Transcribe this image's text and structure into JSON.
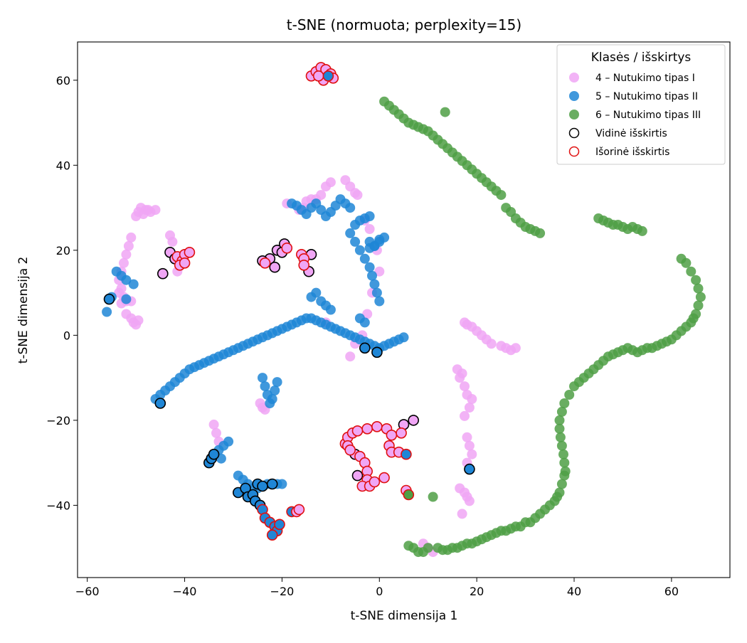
{
  "chart_data": {
    "type": "scatter",
    "title": "t-SNE (normuota; perplexity=15)",
    "xlabel": "t-SNE dimensija 1",
    "ylabel": "t-SNE dimensija 2",
    "xlim": [
      -62,
      72
    ],
    "ylim": [
      -57,
      69
    ],
    "x_ticks": [
      -60,
      -40,
      -20,
      0,
      20,
      40,
      60
    ],
    "y_ticks": [
      -40,
      -20,
      0,
      20,
      40,
      60
    ],
    "x_tick_labels": [
      "−60",
      "−40",
      "−20",
      "0",
      "20",
      "40",
      "60"
    ],
    "y_tick_labels": [
      "−40",
      "−20",
      "0",
      "20",
      "40",
      "60"
    ],
    "grid": false,
    "legend": {
      "title": "Klasės / išskirtys",
      "placement": "top-right",
      "entries": [
        {
          "label": "4 – Nutukimo tipas I",
          "kind": "fill",
          "color": "#f0a6f5"
        },
        {
          "label": "5 – Nutukimo tipas II",
          "kind": "fill",
          "color": "#1f86d6"
        },
        {
          "label": "6 – Nutukimo tipas III",
          "kind": "fill",
          "color": "#4f9f45"
        },
        {
          "label": "Vidinė išskirtis",
          "kind": "ring",
          "color": "#000000"
        },
        {
          "label": "Išorinė išskirtis",
          "kind": "ring",
          "color": "#e01010"
        }
      ]
    },
    "series": [
      {
        "name": "4 – Nutukimo tipas I",
        "color": "#f0a6f5",
        "x": [
          -49,
          -48,
          -47,
          -49.5,
          -48.5,
          -47.5,
          -50,
          -46,
          -51,
          -51.5,
          -52,
          -52.5,
          -53,
          -53.5,
          -53,
          -52.5,
          -53,
          -52,
          -53.5,
          -51,
          -50.5,
          -50,
          -49.5,
          -52,
          -51,
          -43,
          -42.5,
          -41.5,
          -19,
          -15,
          -14,
          -16.5,
          -15.5,
          -13,
          -12,
          -11,
          -10,
          -7,
          -6,
          -5,
          -4.5,
          -3,
          -2,
          -0.5,
          0,
          -1.5,
          -2.5,
          -3.5,
          -5,
          -6,
          -11,
          -34,
          -33.5,
          -33,
          -24.5,
          -24,
          -23.5,
          17.5,
          18,
          19,
          20,
          21,
          22,
          23,
          25,
          26,
          27,
          28,
          16,
          17,
          16.5,
          17.5,
          18,
          19,
          18.5,
          17.5,
          18,
          18.5,
          19,
          18,
          16.5,
          17.5,
          18,
          18.5,
          17,
          9,
          10,
          11
        ],
        "y": [
          30,
          29.5,
          29,
          29,
          28.5,
          29.5,
          28,
          29.5,
          23,
          21,
          19,
          17,
          15,
          13,
          11,
          9,
          7.5,
          8,
          10,
          4,
          3,
          2.5,
          3.5,
          5,
          8,
          23.5,
          22,
          15,
          31,
          31.5,
          32,
          29.5,
          30,
          32,
          33,
          35,
          36,
          36.5,
          35,
          33.5,
          33,
          27,
          25,
          20,
          15,
          10,
          5,
          0,
          -2,
          -5,
          3,
          -21,
          -23,
          -25,
          -16,
          -17,
          -17.5,
          3,
          2.5,
          2,
          1,
          0,
          -1,
          -2,
          -2.5,
          -3,
          -3.5,
          -3,
          -8,
          -9,
          -10,
          -12,
          -14,
          -15,
          -17,
          -19,
          -24,
          -26,
          -28,
          -30,
          -36,
          -37,
          -38,
          -39,
          -42,
          -49,
          -50,
          -51
        ]
      },
      {
        "name": "5 – Nutukimo tipas II",
        "color": "#1f86d6",
        "x": [
          -46,
          -45,
          -44,
          -43,
          -42,
          -41,
          -40,
          -39,
          -38,
          -37,
          -36,
          -35,
          -34,
          -33,
          -32,
          -31,
          -30,
          -29,
          -28,
          -27,
          -26,
          -25,
          -24,
          -23,
          -22,
          -21,
          -20,
          -19,
          -18,
          -17,
          -16,
          -15,
          -14,
          -13,
          -12,
          -11,
          -10,
          -9,
          -8,
          -7,
          -6,
          -5,
          -4,
          -3,
          -2,
          -1,
          0,
          1,
          2,
          3,
          4,
          5,
          -6,
          -5,
          -4,
          -3,
          -2,
          -1.5,
          -1,
          -0.5,
          0,
          -2,
          -1,
          0,
          -5,
          -4,
          -3,
          -2,
          -6,
          -7,
          -8,
          -9,
          -10,
          -11,
          -12,
          -13,
          -14,
          -15,
          -16,
          -17,
          -18,
          -14,
          -13,
          -12,
          -11,
          -10,
          -4,
          -3,
          -2,
          -1,
          0,
          1,
          -24,
          -23.5,
          -23,
          -22.5,
          -22,
          -21.5,
          -21,
          -31,
          -32,
          -33,
          -34,
          -32.5,
          -29,
          -28,
          -27,
          -26,
          -25,
          -24,
          -23,
          -22,
          -21,
          -20,
          -56,
          -55,
          -52,
          -50.5,
          -52,
          -53,
          -54
        ],
        "y": [
          -15,
          -14,
          -13,
          -12,
          -11,
          -10,
          -9,
          -8,
          -7.5,
          -7,
          -6.5,
          -6,
          -5.5,
          -5,
          -4.5,
          -4,
          -3.5,
          -3,
          -2.5,
          -2,
          -1.5,
          -1,
          -0.5,
          0,
          0.5,
          1,
          1.5,
          2,
          2.5,
          3,
          3.5,
          4,
          4,
          3.5,
          3,
          2.5,
          2,
          1.5,
          1,
          0.5,
          0,
          -0.5,
          -1,
          -1.5,
          -2,
          -2.5,
          -3,
          -2.5,
          -2,
          -1.5,
          -1,
          -0.5,
          24,
          22,
          20,
          18,
          16,
          14,
          12,
          10,
          8,
          20.5,
          21,
          22,
          26,
          27,
          27.5,
          28,
          30,
          31,
          32,
          30.5,
          29,
          28,
          29.5,
          31,
          30,
          28.5,
          29.5,
          30.5,
          31,
          9,
          10,
          8,
          7,
          6,
          4,
          3,
          22,
          21,
          22.5,
          23,
          -10,
          -12,
          -14,
          -16,
          -15,
          -13,
          -11,
          -25,
          -26,
          -27,
          -28,
          -29,
          -33,
          -34,
          -35,
          -36,
          -36,
          -35.5,
          -35,
          -35,
          -35,
          -35,
          5.5,
          9,
          8.5,
          12,
          13,
          14,
          15
        ]
      },
      {
        "name": "6 – Nutukimo tipas III",
        "color": "#4f9f45",
        "x": [
          1,
          2,
          3,
          4,
          5,
          6,
          7,
          8,
          9,
          10,
          11,
          12,
          13,
          14,
          15,
          16,
          17,
          18,
          19,
          20,
          21,
          22,
          23,
          24,
          25,
          26,
          27,
          28,
          29,
          30,
          31,
          32,
          33,
          13.5,
          45,
          46,
          47,
          48,
          49,
          50,
          51,
          52,
          53,
          54,
          62,
          63,
          64,
          65,
          65.5,
          66,
          65.5,
          65,
          64.5,
          64,
          63,
          62,
          61,
          60,
          59,
          58,
          57,
          56,
          55,
          54,
          53,
          52,
          51,
          50,
          49,
          48,
          47,
          46,
          45,
          44,
          43,
          42,
          41,
          40,
          39,
          38,
          37.5,
          37,
          37,
          37.2,
          37.5,
          37.8,
          38,
          38.2,
          38,
          37.5,
          37,
          36.5,
          36,
          35,
          34,
          33,
          32,
          31,
          30,
          29,
          28,
          27,
          26,
          25,
          24,
          23,
          22,
          21,
          20,
          19,
          18,
          17,
          16,
          15,
          14,
          13,
          12,
          11,
          10,
          9,
          8,
          7,
          6
        ],
        "y": [
          55,
          54,
          53,
          52,
          51,
          50,
          49.5,
          49,
          48.5,
          48,
          47,
          46,
          45,
          44,
          43,
          42,
          41,
          40,
          39,
          38,
          37,
          36,
          35,
          34,
          33,
          30,
          29,
          27.5,
          26.5,
          25.5,
          25,
          24.5,
          24,
          52.5,
          27.5,
          27,
          26.5,
          26,
          26,
          25.5,
          25,
          25.5,
          25,
          24.5,
          18,
          17,
          15,
          13,
          11,
          9,
          7,
          5,
          4,
          3,
          2,
          1,
          0,
          -1,
          -1.5,
          -2,
          -2.5,
          -3,
          -3,
          -3.5,
          -4,
          -3.5,
          -3,
          -3.5,
          -4,
          -4.5,
          -5,
          -6,
          -7,
          -8,
          -9,
          -10,
          -11,
          -12,
          -14,
          -16,
          -18,
          -20,
          -22,
          -24,
          -26,
          -28,
          -30,
          -32,
          -33,
          -35,
          -37,
          -38,
          -39,
          -40,
          -41,
          -42,
          -43,
          -44,
          -44,
          -45,
          -45,
          -45.5,
          -46,
          -46,
          -46.5,
          -47,
          -47.5,
          -48,
          -48.5,
          -49,
          -49,
          -49.5,
          -50,
          -50,
          -50.5,
          -50.5,
          -50,
          -38,
          -50,
          -51,
          -51,
          -50,
          -49.5
        ]
      }
    ],
    "outliers": [
      {
        "name": "Vidinė išskirtis",
        "ring_color": "#000000",
        "points": [
          {
            "x": -43,
            "y": 19.5,
            "cls": 4
          },
          {
            "x": -42,
            "y": 18,
            "cls": 4
          },
          {
            "x": -44.5,
            "y": 14.5,
            "cls": 4
          },
          {
            "x": -22.5,
            "y": 18,
            "cls": 4
          },
          {
            "x": -21,
            "y": 20,
            "cls": 4
          },
          {
            "x": -19.5,
            "y": 21.5,
            "cls": 4
          },
          {
            "x": -20,
            "y": 19.5,
            "cls": 4
          },
          {
            "x": -21.5,
            "y": 16,
            "cls": 4
          },
          {
            "x": -24,
            "y": 17.5,
            "cls": 4
          },
          {
            "x": -14.5,
            "y": 15,
            "cls": 4
          },
          {
            "x": -14,
            "y": 19,
            "cls": 4
          },
          {
            "x": -55.5,
            "y": 8.5,
            "cls": 5
          },
          {
            "x": -45,
            "y": -16,
            "cls": 5
          },
          {
            "x": -3,
            "y": -3,
            "cls": 5
          },
          {
            "x": -0.5,
            "y": -4,
            "cls": 5
          },
          {
            "x": -35,
            "y": -30,
            "cls": 5
          },
          {
            "x": -34.5,
            "y": -29,
            "cls": 5
          },
          {
            "x": -34,
            "y": -28,
            "cls": 5
          },
          {
            "x": -29,
            "y": -37,
            "cls": 5
          },
          {
            "x": -27.5,
            "y": -36,
            "cls": 5
          },
          {
            "x": -27,
            "y": -38,
            "cls": 5
          },
          {
            "x": -26,
            "y": -37.5,
            "cls": 5
          },
          {
            "x": -25,
            "y": -35,
            "cls": 5
          },
          {
            "x": -24,
            "y": -35.5,
            "cls": 5
          },
          {
            "x": -22,
            "y": -35,
            "cls": 5
          },
          {
            "x": -25.5,
            "y": -39,
            "cls": 5
          },
          {
            "x": -24.5,
            "y": -40,
            "cls": 5
          },
          {
            "x": 18.5,
            "y": -31.5,
            "cls": 5
          },
          {
            "x": 7,
            "y": -20,
            "cls": 4
          },
          {
            "x": 5,
            "y": -21,
            "cls": 4
          },
          {
            "x": -5,
            "y": -28,
            "cls": 4
          },
          {
            "x": -4.5,
            "y": -33,
            "cls": 4
          }
        ]
      },
      {
        "name": "Išorinė išskirtis",
        "ring_color": "#e01010",
        "points": [
          {
            "x": -14,
            "y": 61,
            "cls": 4
          },
          {
            "x": -13,
            "y": 62,
            "cls": 4
          },
          {
            "x": -12,
            "y": 63,
            "cls": 4
          },
          {
            "x": -11,
            "y": 62.5,
            "cls": 4
          },
          {
            "x": -10,
            "y": 61.5,
            "cls": 4
          },
          {
            "x": -9.5,
            "y": 60.5,
            "cls": 4
          },
          {
            "x": -11.5,
            "y": 60,
            "cls": 4
          },
          {
            "x": -12.5,
            "y": 61,
            "cls": 4
          },
          {
            "x": -10.5,
            "y": 61,
            "cls": 5
          },
          {
            "x": -41.5,
            "y": 18.5,
            "cls": 4
          },
          {
            "x": -40.5,
            "y": 17.5,
            "cls": 4
          },
          {
            "x": -40,
            "y": 19,
            "cls": 4
          },
          {
            "x": -39,
            "y": 19.5,
            "cls": 4
          },
          {
            "x": -41,
            "y": 16.5,
            "cls": 4
          },
          {
            "x": -40,
            "y": 17,
            "cls": 4
          },
          {
            "x": -23.5,
            "y": 17,
            "cls": 4
          },
          {
            "x": -19,
            "y": 20.5,
            "cls": 4
          },
          {
            "x": -16,
            "y": 19,
            "cls": 4
          },
          {
            "x": -15.5,
            "y": 18,
            "cls": 4
          },
          {
            "x": -15.5,
            "y": 16.5,
            "cls": 4
          },
          {
            "x": -24,
            "y": -41,
            "cls": 5
          },
          {
            "x": -23.5,
            "y": -43,
            "cls": 5
          },
          {
            "x": -22.5,
            "y": -44,
            "cls": 5
          },
          {
            "x": -21.5,
            "y": -45,
            "cls": 5
          },
          {
            "x": -21,
            "y": -46,
            "cls": 5
          },
          {
            "x": -22,
            "y": -47,
            "cls": 5
          },
          {
            "x": -20.5,
            "y": -44.5,
            "cls": 5
          },
          {
            "x": -18,
            "y": -41.5,
            "cls": 5
          },
          {
            "x": -17,
            "y": -41.5,
            "cls": 4
          },
          {
            "x": -16.5,
            "y": -41,
            "cls": 4
          },
          {
            "x": -7,
            "y": -25.5,
            "cls": 4
          },
          {
            "x": -6.5,
            "y": -24,
            "cls": 4
          },
          {
            "x": -5.5,
            "y": -23,
            "cls": 4
          },
          {
            "x": -4.5,
            "y": -22.5,
            "cls": 4
          },
          {
            "x": -2.5,
            "y": -22,
            "cls": 4
          },
          {
            "x": -0.5,
            "y": -21.5,
            "cls": 4
          },
          {
            "x": 1.5,
            "y": -22,
            "cls": 4
          },
          {
            "x": 2.5,
            "y": -23.5,
            "cls": 4
          },
          {
            "x": 2,
            "y": -26,
            "cls": 4
          },
          {
            "x": 2.5,
            "y": -27.5,
            "cls": 4
          },
          {
            "x": 4,
            "y": -27.5,
            "cls": 4
          },
          {
            "x": 5.5,
            "y": -28,
            "cls": 5
          },
          {
            "x": 4.5,
            "y": -23,
            "cls": 4
          },
          {
            "x": -6.5,
            "y": -26,
            "cls": 4
          },
          {
            "x": -6,
            "y": -27,
            "cls": 4
          },
          {
            "x": -4,
            "y": -28.5,
            "cls": 4
          },
          {
            "x": -3,
            "y": -30,
            "cls": 4
          },
          {
            "x": -2.5,
            "y": -32,
            "cls": 4
          },
          {
            "x": -2.5,
            "y": -34,
            "cls": 4
          },
          {
            "x": -3.5,
            "y": -35.5,
            "cls": 4
          },
          {
            "x": -2,
            "y": -35.5,
            "cls": 4
          },
          {
            "x": -1,
            "y": -34.5,
            "cls": 4
          },
          {
            "x": 1,
            "y": -33.5,
            "cls": 4
          },
          {
            "x": 5.5,
            "y": -36.5,
            "cls": 4
          },
          {
            "x": 6,
            "y": -37.5,
            "cls": 6
          }
        ]
      }
    ]
  }
}
